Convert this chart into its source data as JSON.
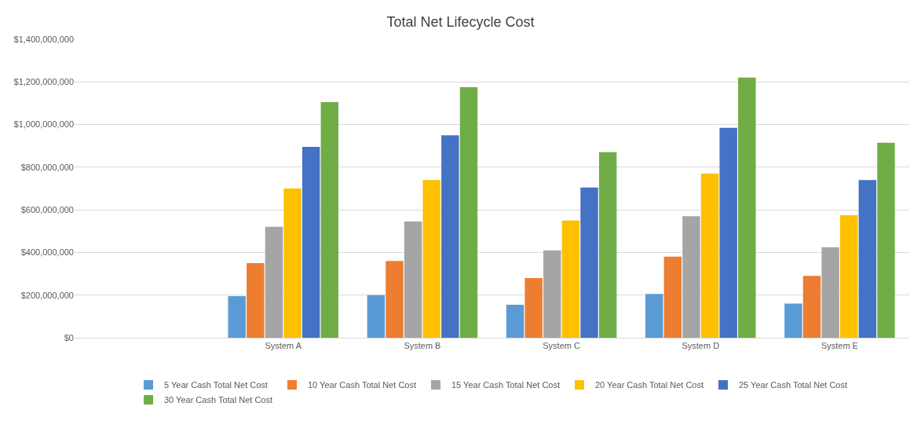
{
  "chart_data": {
    "type": "bar",
    "title": "Total Net Lifecycle Cost",
    "categories": [
      null,
      "System A",
      "System B",
      "System C",
      "System D",
      "System E"
    ],
    "series": [
      {
        "name": "5 Year Cash Total Net Cost",
        "color": "#5b9bd5",
        "values": [
          null,
          195000000,
          200000000,
          155000000,
          205000000,
          160000000
        ]
      },
      {
        "name": "10 Year Cash Total Net Cost",
        "color": "#ed7d31",
        "values": [
          null,
          350000000,
          360000000,
          280000000,
          380000000,
          290000000
        ]
      },
      {
        "name": "15 Year Cash Total Net Cost",
        "color": "#a5a5a5",
        "values": [
          null,
          520000000,
          545000000,
          410000000,
          570000000,
          425000000
        ]
      },
      {
        "name": "20 Year Cash Total Net Cost",
        "color": "#ffc000",
        "values": [
          null,
          700000000,
          740000000,
          550000000,
          770000000,
          575000000
        ]
      },
      {
        "name": "25 Year Cash Total Net Cost",
        "color": "#4472c4",
        "values": [
          null,
          895000000,
          950000000,
          705000000,
          985000000,
          740000000
        ]
      },
      {
        "name": "30 Year Cash Total Net Cost",
        "color": "#70ad47",
        "values": [
          null,
          1105000000,
          1175000000,
          870000000,
          1220000000,
          915000000
        ]
      }
    ],
    "ylim": [
      0,
      1400000000
    ],
    "yticks": [
      {
        "value": 0,
        "label": "$0"
      },
      {
        "value": 200000000,
        "label": "$200,000,000"
      },
      {
        "value": 400000000,
        "label": "$400,000,000"
      },
      {
        "value": 600000000,
        "label": "$600,000,000"
      },
      {
        "value": 800000000,
        "label": "$800,000,000"
      },
      {
        "value": 1000000000,
        "label": "$1,000,000,000"
      },
      {
        "value": 1200000000,
        "label": "$1,200,000,000"
      },
      {
        "value": 1400000000,
        "label": "$1,400,000,000"
      }
    ],
    "grid": "y",
    "legend": "bottom"
  }
}
